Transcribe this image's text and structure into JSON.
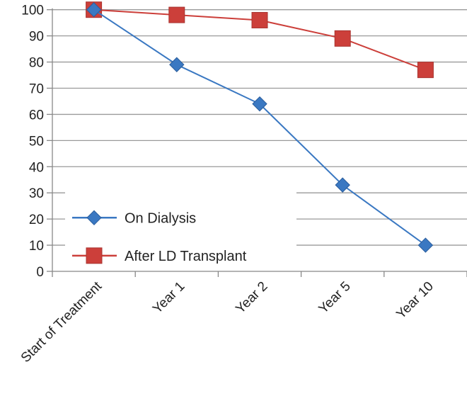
{
  "chart_data": {
    "type": "line",
    "categories": [
      "Start of Treatment",
      "Year 1",
      "Year 2",
      "Year 5",
      "Year 10"
    ],
    "series": [
      {
        "name": "On Dialysis",
        "values": [
          100,
          79,
          64,
          33,
          10
        ],
        "color": "#3a78c2",
        "marker": "diamond"
      },
      {
        "name": "After LD Transplant",
        "values": [
          100,
          98,
          96,
          89,
          77
        ],
        "color": "#cc3f3a",
        "marker": "square"
      }
    ],
    "title": "",
    "xlabel": "",
    "ylabel": "",
    "ylim": [
      0,
      100
    ],
    "yticks": [
      0,
      10,
      20,
      30,
      40,
      50,
      60,
      70,
      80,
      90,
      100
    ],
    "grid": true,
    "legend": "lower-left"
  }
}
